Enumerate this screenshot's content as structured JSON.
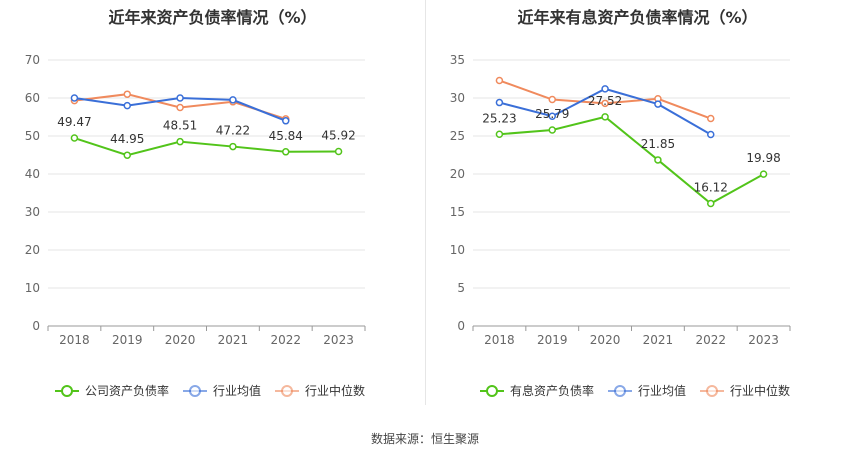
{
  "source_text": "数据来源：恒生聚源",
  "chart_data": [
    {
      "type": "line",
      "title": "近年来资产负债率情况（%）",
      "categories": [
        "2018",
        "2019",
        "2020",
        "2021",
        "2022",
        "2023"
      ],
      "ylim": [
        0,
        70
      ],
      "yticks": [
        0,
        10,
        20,
        30,
        40,
        50,
        60,
        70
      ],
      "grid": true,
      "legend_position": "bottom",
      "series": [
        {
          "name": "公司资产负债率",
          "color": "#52c41a",
          "values": [
            49.47,
            44.95,
            48.51,
            47.22,
            45.84,
            45.92
          ],
          "labels": [
            "49.47",
            "44.95",
            "48.51",
            "47.22",
            "45.84",
            "45.92"
          ]
        },
        {
          "name": "行业均值",
          "color": "#3a6fd8",
          "values": [
            60.0,
            58.0,
            60.0,
            59.5,
            54.0,
            null
          ]
        },
        {
          "name": "行业中位数",
          "color": "#f08a5d",
          "values": [
            59.3,
            61.0,
            57.5,
            59.0,
            54.5,
            null
          ]
        }
      ]
    },
    {
      "type": "line",
      "title": "近年来有息资产负债率情况（%）",
      "categories": [
        "2018",
        "2019",
        "2020",
        "2021",
        "2022",
        "2023"
      ],
      "ylim": [
        0,
        35
      ],
      "yticks": [
        0,
        5,
        10,
        15,
        20,
        25,
        30,
        35
      ],
      "grid": true,
      "legend_position": "bottom",
      "series": [
        {
          "name": "有息资产负债率",
          "color": "#52c41a",
          "values": [
            25.23,
            25.79,
            27.52,
            21.85,
            16.12,
            19.98
          ],
          "labels": [
            "25.23",
            "25.79",
            "27.52",
            "21.85",
            "16.12",
            "19.98"
          ]
        },
        {
          "name": "行业均值",
          "color": "#3a6fd8",
          "values": [
            29.4,
            27.6,
            31.2,
            29.2,
            25.2,
            null
          ]
        },
        {
          "name": "行业中位数",
          "color": "#f08a5d",
          "values": [
            32.3,
            29.8,
            29.3,
            29.9,
            27.3,
            null
          ]
        }
      ]
    }
  ]
}
